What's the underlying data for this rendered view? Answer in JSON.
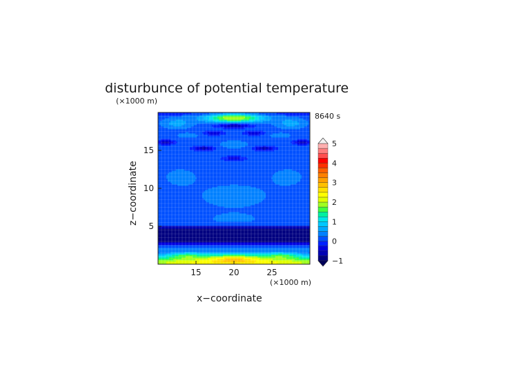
{
  "chart_data": {
    "type": "heatmap",
    "title": "disturbunce of potential temperature",
    "time_label": "8640 s",
    "xlabel": "x−coordinate",
    "ylabel": "z−coordinate",
    "x_unit": "(×1000 m)",
    "z_unit": "(×1000 m)",
    "xlim": [
      10,
      30
    ],
    "zlim": [
      0,
      20
    ],
    "x_ticks": [
      15,
      20,
      25
    ],
    "z_ticks": [
      5,
      10,
      15
    ],
    "grid": true,
    "colorbar": {
      "ticks": [
        -1,
        0,
        1,
        2,
        3,
        4,
        5
      ],
      "levels": [
        -1,
        -0.75,
        -0.5,
        -0.25,
        0,
        0.25,
        0.5,
        0.75,
        1,
        1.25,
        1.5,
        1.75,
        2,
        2.25,
        2.5,
        2.75,
        3,
        3.25,
        3.5,
        3.75,
        4,
        4.25,
        4.5,
        4.75,
        5
      ],
      "colors": [
        "#000080",
        "#0000b4",
        "#0000e0",
        "#0020ff",
        "#0050ff",
        "#0080ff",
        "#00a8ff",
        "#00c8ff",
        "#00e6e6",
        "#00f0a0",
        "#40ff40",
        "#a0ff20",
        "#e0ff00",
        "#ffff00",
        "#ffe000",
        "#ffc000",
        "#ffa000",
        "#ff8000",
        "#ff6000",
        "#ff3000",
        "#ff0000",
        "#ff5050",
        "#ff8080",
        "#ffb0b0"
      ],
      "legend_placement": "right"
    },
    "field_description": "warm band near surface z<1.5 (values 2-3, max ~3 near x=20, z=0.8); cold band z 2.5-5 (values ~-0.8); upper layers mostly 0 to 0.5 with negative cells near z 16-18 and warm cap near z 19 (~2)"
  }
}
